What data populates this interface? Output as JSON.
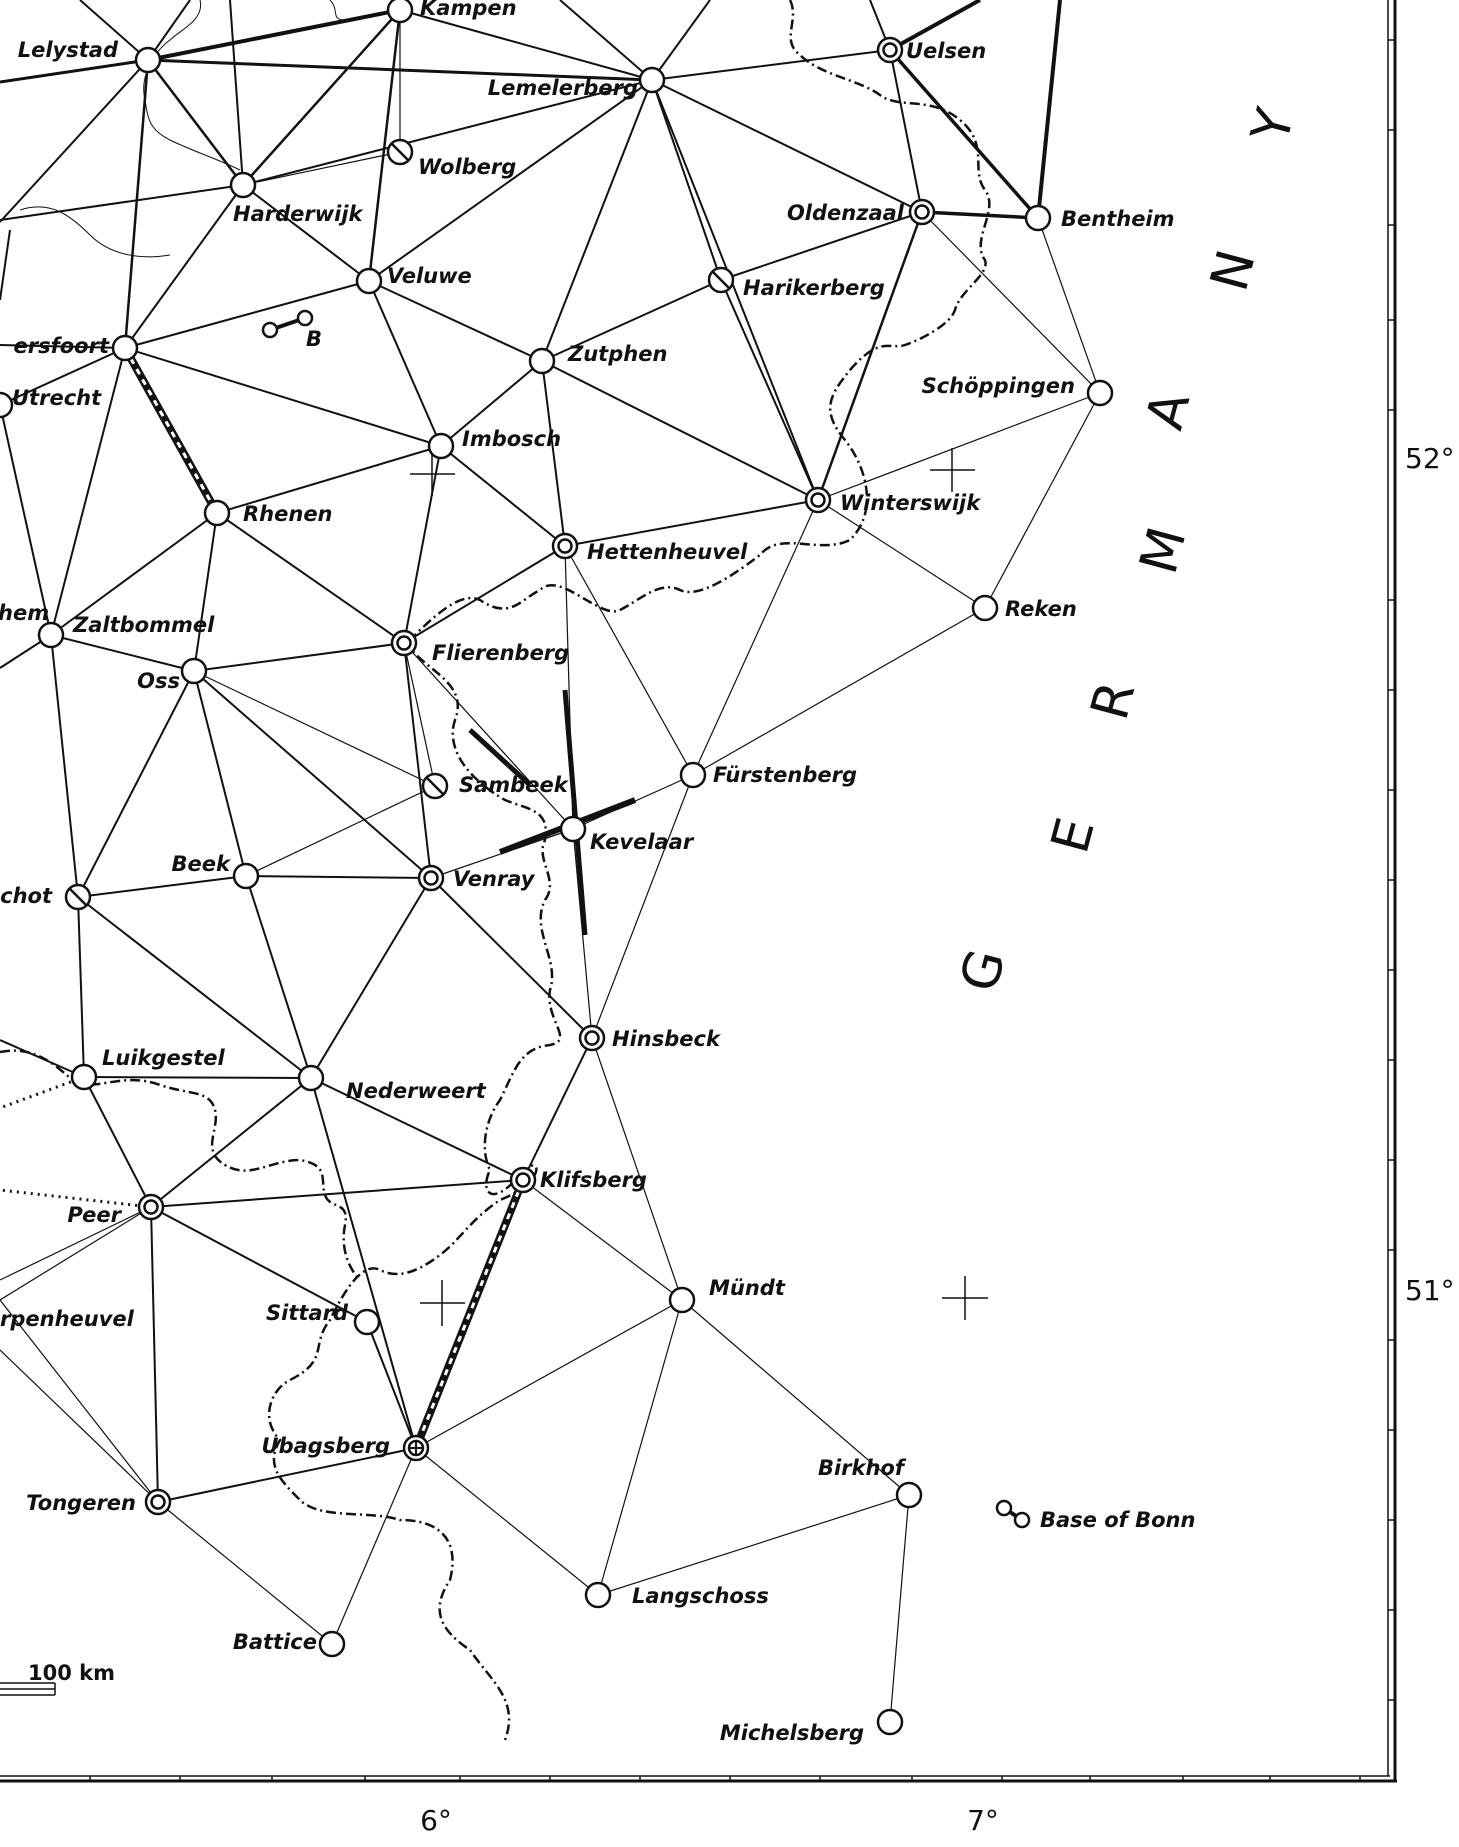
{
  "map": {
    "country_label": "GERMANY",
    "latitude_labels": [
      "52°",
      "51°"
    ],
    "longitude_labels": [
      "6°",
      "7°"
    ],
    "scale_label": "100 km",
    "stations": [
      {
        "id": "kampen",
        "name": "Kampen",
        "symbol": "circle"
      },
      {
        "id": "lelystad",
        "name": "Lelystad",
        "symbol": "circle"
      },
      {
        "id": "uelsen",
        "name": "Uelsen",
        "symbol": "double-circle"
      },
      {
        "id": "lemelerberg",
        "name": "Lemelerberg",
        "symbol": "circle"
      },
      {
        "id": "wolberg",
        "name": "Wolberg",
        "symbol": "crossed-circle"
      },
      {
        "id": "harderwijk",
        "name": "Harderwijk",
        "symbol": "circle"
      },
      {
        "id": "oldenzaal",
        "name": "Oldenzaal",
        "symbol": "double-circle"
      },
      {
        "id": "bentheim",
        "name": "Bentheim",
        "symbol": "circle"
      },
      {
        "id": "veluwe",
        "name": "Veluwe",
        "symbol": "circle"
      },
      {
        "id": "harikerberg",
        "name": "Harikerberg",
        "symbol": "crossed-circle"
      },
      {
        "id": "amersfoort",
        "name": "ersfoort",
        "symbol": "circle"
      },
      {
        "id": "zutphen",
        "name": "Zutphen",
        "symbol": "circle"
      },
      {
        "id": "schoppingen",
        "name": "Schöppingen",
        "symbol": "circle"
      },
      {
        "id": "utrecht",
        "name": "Utrecht",
        "symbol": "circle"
      },
      {
        "id": "imbosch",
        "name": "Imbosch",
        "symbol": "circle"
      },
      {
        "id": "winterswijk",
        "name": "Winterswijk",
        "symbol": "double-circle"
      },
      {
        "id": "rhenen",
        "name": "Rhenen",
        "symbol": "circle"
      },
      {
        "id": "hettenheuvel",
        "name": "Hettenheuvel",
        "symbol": "double-circle"
      },
      {
        "id": "reken",
        "name": "Reken",
        "symbol": "circle"
      },
      {
        "id": "nijmegen",
        "name": "hem",
        "symbol": "none"
      },
      {
        "id": "zaltbommel",
        "name": "Zaltbommel",
        "symbol": "circle"
      },
      {
        "id": "flierenberg",
        "name": "Flierenberg",
        "symbol": "double-circle"
      },
      {
        "id": "oss",
        "name": "Oss",
        "symbol": "circle"
      },
      {
        "id": "furstenberg",
        "name": "Fürstenberg",
        "symbol": "circle"
      },
      {
        "id": "sambeek",
        "name": "Sambeek",
        "symbol": "crossed-circle"
      },
      {
        "id": "kevelaar",
        "name": "Kevelaar",
        "symbol": "circle"
      },
      {
        "id": "beek",
        "name": "Beek",
        "symbol": "circle"
      },
      {
        "id": "venray",
        "name": "Venray",
        "symbol": "double-circle"
      },
      {
        "id": "oirschot",
        "name": "chot",
        "symbol": "crossed-circle"
      },
      {
        "id": "hinsbeck",
        "name": "Hinsbeck",
        "symbol": "double-circle"
      },
      {
        "id": "luikgestel",
        "name": "Luikgestel",
        "symbol": "circle"
      },
      {
        "id": "nederweert",
        "name": "Nederweert",
        "symbol": "circle"
      },
      {
        "id": "klifsberg",
        "name": "Klifsberg",
        "symbol": "double-circle"
      },
      {
        "id": "peer",
        "name": "Peer",
        "symbol": "double-circle"
      },
      {
        "id": "mundt",
        "name": "Mündt",
        "symbol": "circle"
      },
      {
        "id": "scherpenheuvel",
        "name": "rpenheuvel",
        "symbol": "none"
      },
      {
        "id": "sittard",
        "name": "Sittard",
        "symbol": "circle"
      },
      {
        "id": "ubagsberg",
        "name": "Ubagsberg",
        "symbol": "target"
      },
      {
        "id": "birkhof",
        "name": "Birkhof",
        "symbol": "circle"
      },
      {
        "id": "tongeren",
        "name": "Tongeren",
        "symbol": "double-circle"
      },
      {
        "id": "langschoss",
        "name": "Langschoss",
        "symbol": "circle"
      },
      {
        "id": "battice",
        "name": "Battice",
        "symbol": "circle"
      },
      {
        "id": "michelsberg",
        "name": "Michelsberg",
        "symbol": "circle"
      }
    ],
    "bases": [
      {
        "id": "base_b",
        "name": "B"
      },
      {
        "id": "base_bonn",
        "name": "Base of Bonn"
      }
    ]
  }
}
